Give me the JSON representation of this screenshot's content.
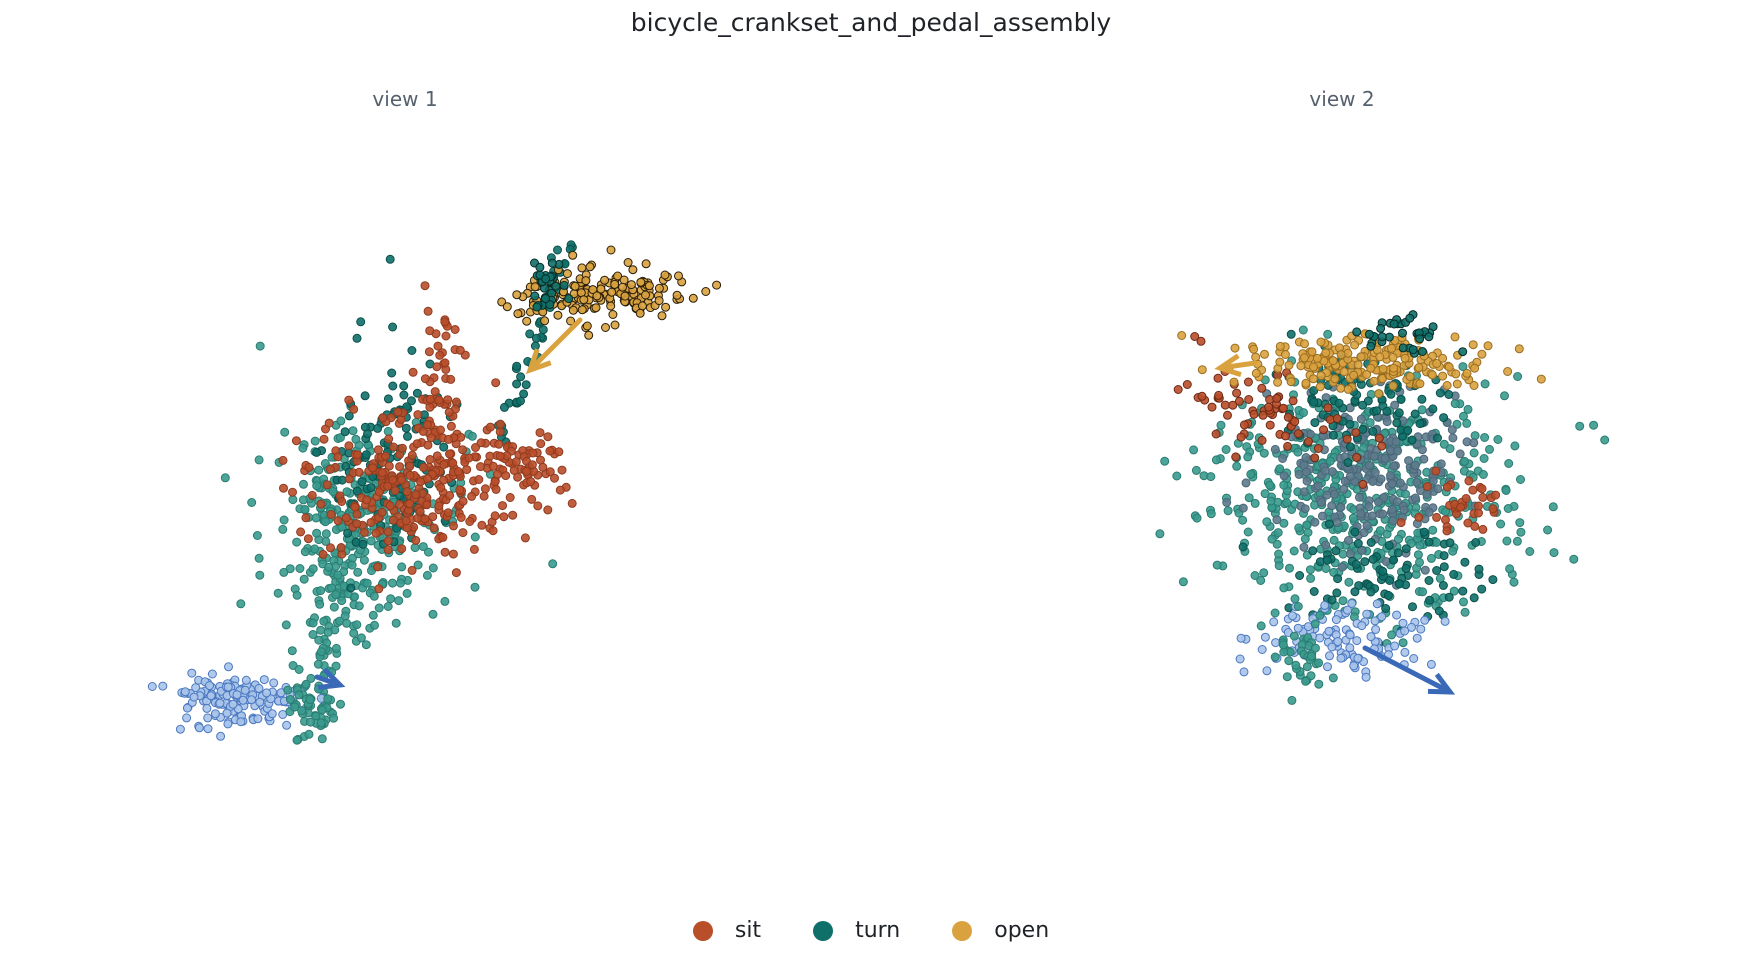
{
  "title": "bicycle_crankset_and_pedal_assembly",
  "panels": [
    {
      "title": "view 1"
    },
    {
      "title": "view 2"
    }
  ],
  "legend": [
    {
      "label": "sit",
      "color": "#b94e2a"
    },
    {
      "label": "turn",
      "color": "#0f7069"
    },
    {
      "label": "open",
      "color": "#d9a23f"
    }
  ],
  "colors": {
    "sit": "#b94e2a",
    "turn": "#0f7069",
    "turn_light": "#3a9a8e",
    "open": "#d9a23f",
    "cluster_blue": "#a9c4ea",
    "arrow_blue": "#3a6ab7"
  },
  "chart_data": [
    {
      "type": "scatter",
      "title": "view 1",
      "xlabel": "",
      "ylabel": "",
      "grid": false,
      "legend_position": "bottom-center",
      "series": [
        {
          "name": "sit",
          "clusters": [
            {
              "cx": 0.45,
              "cy": 0.55,
              "n": 320
            }
          ]
        },
        {
          "name": "turn",
          "clusters": [
            {
              "cx": 0.4,
              "cy": 0.5,
              "n": 300
            },
            {
              "cx": 0.35,
              "cy": 0.35,
              "n": 180
            },
            {
              "cx": 0.62,
              "cy": 0.78,
              "n": 40
            }
          ]
        },
        {
          "name": "open",
          "clusters": [
            {
              "cx": 0.78,
              "cy": 0.9,
              "n": 160
            }
          ]
        }
      ],
      "arrows": [
        {
          "series": "open",
          "from": [
            0.78,
            0.88
          ],
          "to": [
            0.64,
            0.72
          ]
        },
        {
          "series": "blue",
          "from": [
            0.27,
            0.15
          ],
          "to": [
            0.3,
            0.14
          ]
        }
      ]
    },
    {
      "type": "scatter",
      "title": "view 2",
      "xlabel": "",
      "ylabel": "",
      "grid": false,
      "legend_position": "bottom-center",
      "series": [
        {
          "name": "sit",
          "clusters": [
            {
              "cx": 0.35,
              "cy": 0.65,
              "n": 70
            },
            {
              "cx": 0.85,
              "cy": 0.45,
              "n": 40
            }
          ]
        },
        {
          "name": "turn",
          "clusters": [
            {
              "cx": 0.55,
              "cy": 0.45,
              "n": 520
            },
            {
              "cx": 0.55,
              "cy": 0.25,
              "n": 80
            }
          ]
        },
        {
          "name": "open",
          "clusters": [
            {
              "cx": 0.6,
              "cy": 0.82,
              "n": 180
            }
          ]
        }
      ],
      "arrows": [
        {
          "series": "open",
          "from": [
            0.45,
            0.82
          ],
          "to": [
            0.25,
            0.8
          ]
        },
        {
          "series": "blue",
          "from": [
            0.65,
            0.1
          ],
          "to": [
            0.95,
            0.0
          ]
        }
      ]
    }
  ]
}
